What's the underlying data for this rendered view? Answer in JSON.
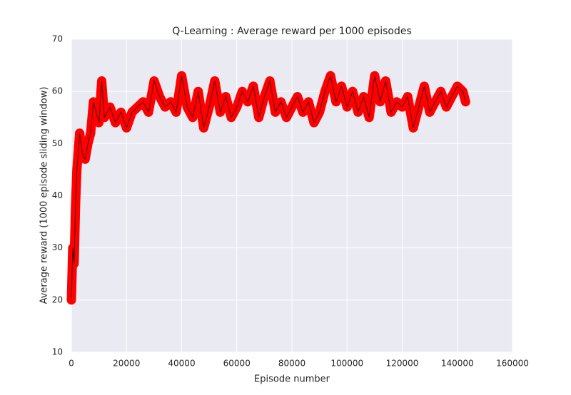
{
  "chart_data": {
    "type": "line",
    "title": "Q-Learning : Average reward per 1000 episodes",
    "x_label": "Episode number",
    "y_label": "Average reward (1000 episode sliding window)",
    "x": [
      0,
      500,
      1000,
      1500,
      2000,
      3000,
      4000,
      5000,
      6000,
      7000,
      8000,
      9000,
      10000,
      11000,
      12000,
      14000,
      16000,
      18000,
      20000,
      22000,
      24000,
      26000,
      28000,
      30000,
      32000,
      34000,
      36000,
      38000,
      40000,
      42000,
      44000,
      46000,
      48000,
      50000,
      52000,
      54000,
      56000,
      58000,
      60000,
      62000,
      64000,
      66000,
      68000,
      70000,
      72000,
      74000,
      76000,
      78000,
      80000,
      82000,
      84000,
      86000,
      88000,
      90000,
      92000,
      94000,
      96000,
      98000,
      100000,
      102000,
      104000,
      106000,
      108000,
      110000,
      112000,
      114000,
      116000,
      118000,
      120000,
      122000,
      124000,
      126000,
      128000,
      130000,
      132000,
      134000,
      136000,
      138000,
      140000,
      142000,
      143000
    ],
    "series": [
      {
        "color": "#ff0000",
        "values": [
          20,
          30,
          27,
          38,
          45,
          52,
          48,
          47,
          50,
          52,
          58,
          56,
          54,
          62,
          55,
          57,
          54,
          56,
          53,
          56,
          57,
          58,
          56,
          62,
          59,
          57,
          58,
          56,
          63,
          57,
          55,
          60,
          53,
          57,
          62,
          56,
          59,
          55,
          57,
          60,
          58,
          61,
          55,
          59,
          62,
          56,
          58,
          55,
          57,
          59,
          56,
          58,
          54,
          56,
          60,
          63,
          58,
          61,
          57,
          60,
          56,
          59,
          55,
          63,
          58,
          62,
          56,
          58,
          57,
          59,
          53,
          57,
          61,
          56,
          58,
          60,
          57,
          59,
          61,
          60,
          58
        ]
      }
    ],
    "xlim": [
      0,
      160000
    ],
    "ylim": [
      10,
      70
    ],
    "xticks": [
      0,
      20000,
      40000,
      60000,
      80000,
      100000,
      120000,
      140000,
      160000
    ],
    "yticks": [
      10,
      20,
      30,
      40,
      50,
      60,
      70
    ],
    "grid": true
  }
}
